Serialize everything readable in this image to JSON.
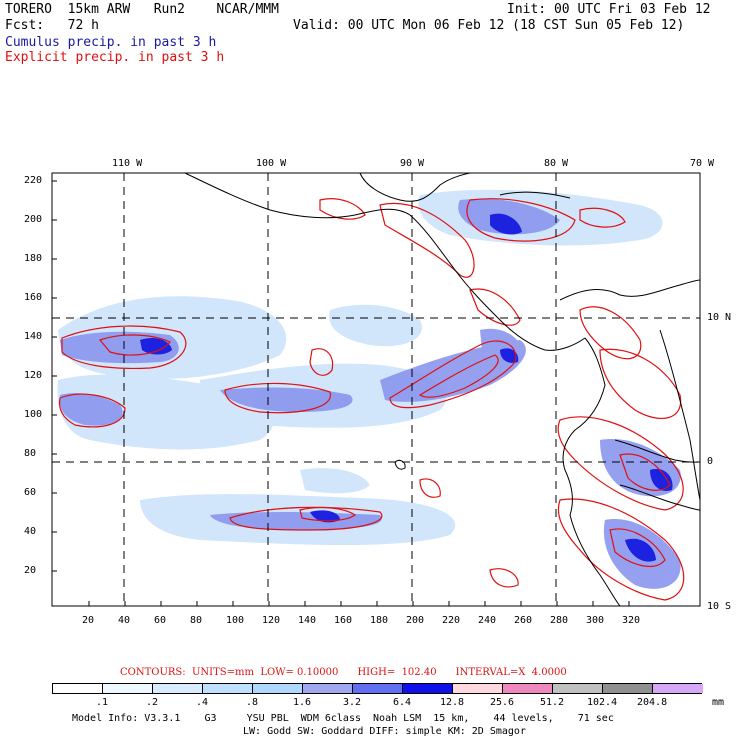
{
  "header": {
    "model": "TORERO  15km ARW   Run2    NCAR/MMM",
    "init": "Init: 00 UTC Fri 03 Feb 12",
    "fcst": "Fcst:   72 h",
    "valid": "Valid: 00 UTC Mon 06 Feb 12 (18 CST Sun 05 Feb 12)",
    "cumulus": "Cumulus precip. in past 3 h",
    "explicit": "Explicit precip. in past 3 h",
    "cumulus_color": "#1a1aa0",
    "explicit_color": "#e01010"
  },
  "map": {
    "lon_labels": [
      "110 W",
      "100 W",
      "90 W",
      "80 W",
      "70 W"
    ],
    "lat_labels": [
      "10 N",
      "0",
      "10 S"
    ],
    "y_ticks": [
      "220",
      "200",
      "180",
      "160",
      "140",
      "120",
      "100",
      "80",
      "60",
      "40",
      "20"
    ],
    "x_ticks": [
      "20",
      "40",
      "60",
      "80",
      "100",
      "120",
      "140",
      "160",
      "180",
      "200",
      "220",
      "240",
      "260",
      "280",
      "300",
      "320"
    ]
  },
  "contours": {
    "text": "CONTOURS:  UNITS=mm  LOW= 0.10000      HIGH=  102.40      INTERVAL=X  4.0000"
  },
  "colorbar": {
    "labels": [
      ".1",
      ".2",
      ".4",
      ".8",
      "1.6",
      "3.2",
      "6.4",
      "12.8",
      "25.6",
      "51.2",
      "102.4",
      "204.8"
    ],
    "units": "mm",
    "colors": [
      "#ffffff",
      "#f0f8ff",
      "#d8ecff",
      "#c0e0ff",
      "#b0d8ff",
      "#a0a8f0",
      "#6070f0",
      "#1010e8",
      "#ffd8e0",
      "#f088c0",
      "#c0c0c0",
      "#909090",
      "#d8a8f8"
    ]
  },
  "footer": {
    "line1": "Model Info: V3.3.1    G3     YSU PBL  WDM 6class  Noah LSM  15 km,    44 levels,    71 sec",
    "line2": "LW: Godd SW: Goddard DIFF: simple KM: 2D Smagor"
  }
}
